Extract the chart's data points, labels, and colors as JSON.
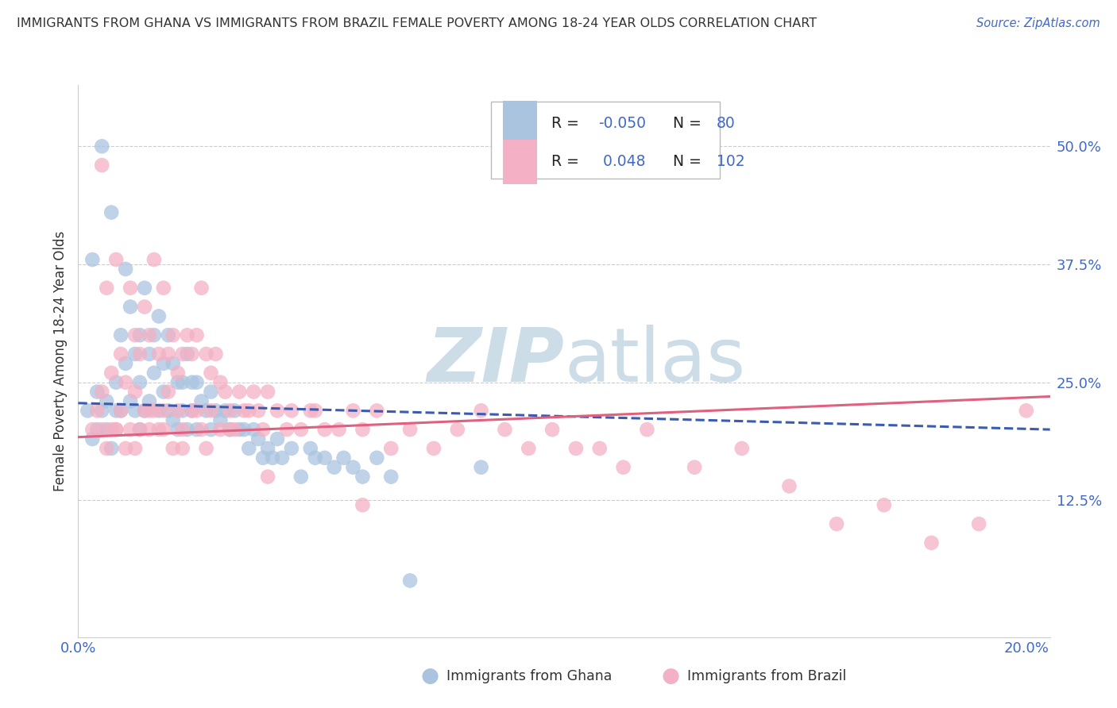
{
  "title": "IMMIGRANTS FROM GHANA VS IMMIGRANTS FROM BRAZIL FEMALE POVERTY AMONG 18-24 YEAR OLDS CORRELATION CHART",
  "source": "Source: ZipAtlas.com",
  "ylabel": "Female Poverty Among 18-24 Year Olds",
  "ghana_R": -0.05,
  "ghana_N": 80,
  "brazil_R": 0.048,
  "brazil_N": 102,
  "ghana_color": "#aac4e0",
  "brazil_color": "#f4b0c4",
  "ghana_line_color": "#3a5baf",
  "brazil_line_color": "#e06080",
  "watermark_color": "#ccdde8",
  "xlim_max": 0.205,
  "ylim_min": -0.02,
  "ylim_max": 0.565,
  "yticks": [
    0.0,
    0.125,
    0.25,
    0.375,
    0.5
  ],
  "ytick_labels": [
    "",
    "12.5%",
    "25.0%",
    "37.5%",
    "50.0%"
  ]
}
